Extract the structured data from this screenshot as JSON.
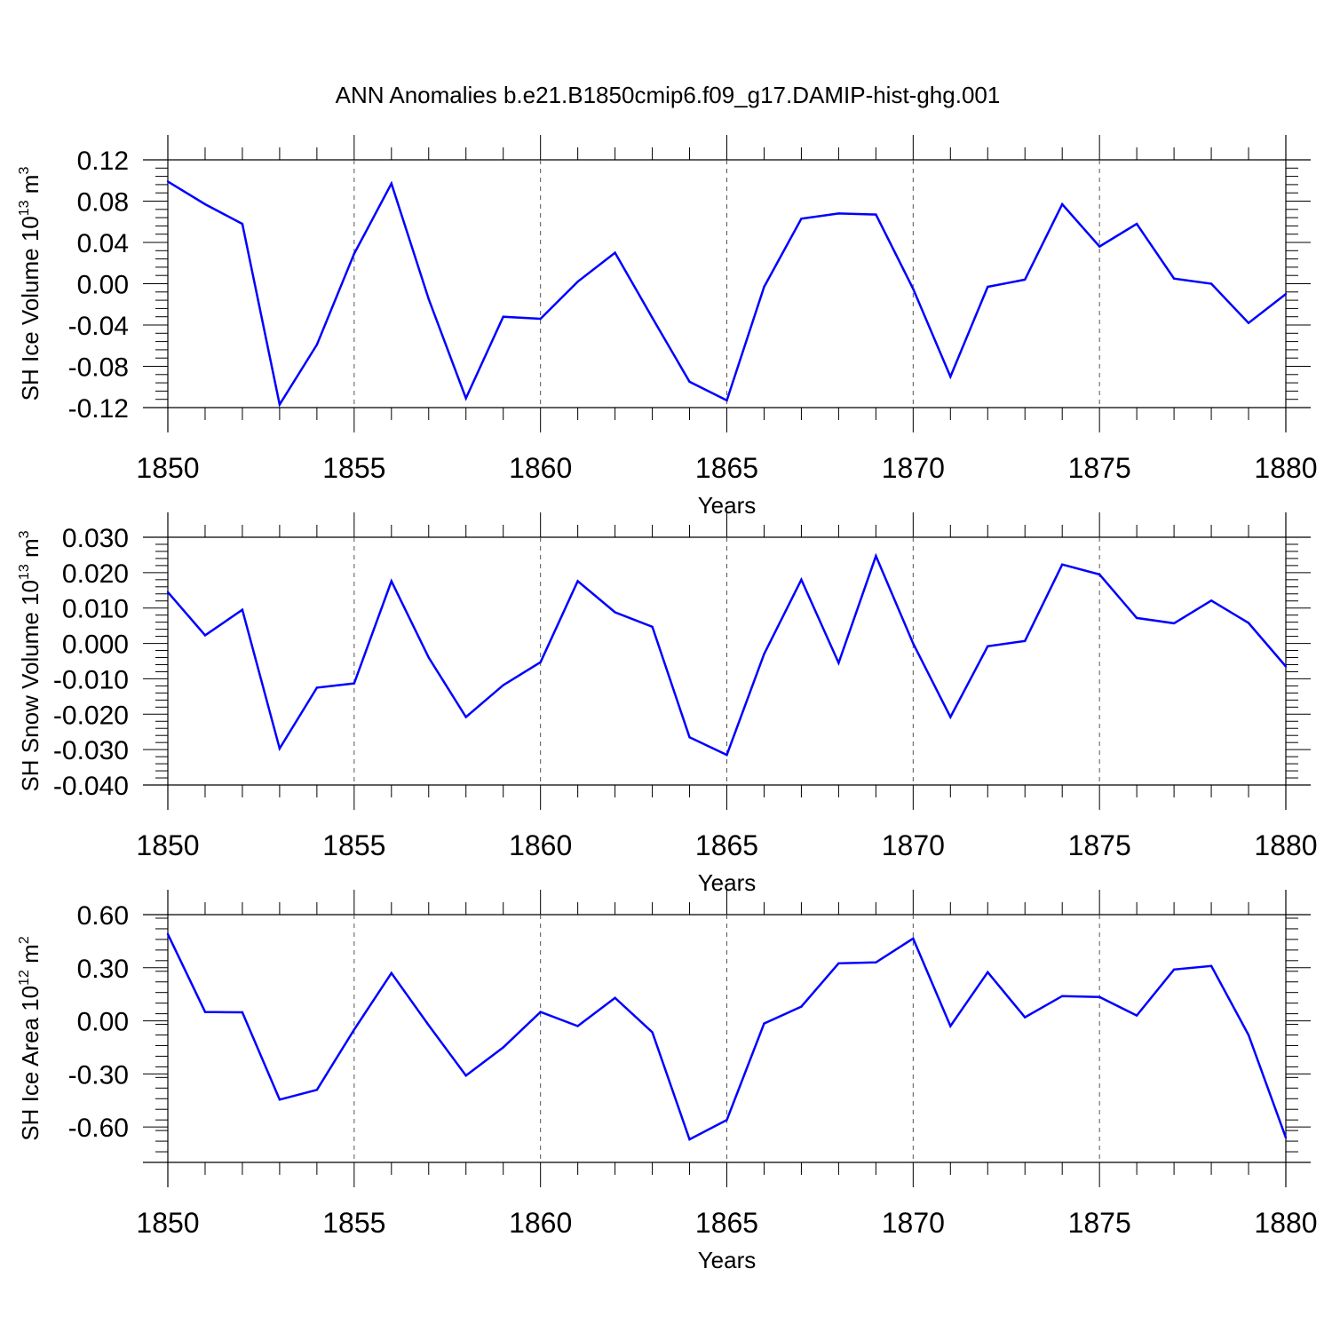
{
  "title": "ANN Anomalies b.e21.B1850cmip6.f09_g17.DAMIP-hist-ghg.001",
  "colors": {
    "series": "#0000ff",
    "frame": "#000000",
    "grid": "#555555"
  },
  "chart_data": [
    {
      "type": "line",
      "ylabel_main": "SH Ice Volume 10",
      "ylabel_exp1": "13",
      "ylabel_mid": " m",
      "ylabel_exp2": "3",
      "xlabel": "Years",
      "xlim": [
        1850,
        1880
      ],
      "ylim": [
        -0.12,
        0.12
      ],
      "x_ticks": [
        1850,
        1855,
        1860,
        1865,
        1870,
        1875,
        1880
      ],
      "x_tick_labels": [
        "1850",
        "1855",
        "1860",
        "1865",
        "1870",
        "1875",
        "1880"
      ],
      "y_ticks": [
        -0.12,
        -0.08,
        -0.04,
        0.0,
        0.04,
        0.08,
        0.12
      ],
      "y_tick_labels": [
        "-0.12",
        "-0.08",
        "-0.04",
        "0.00",
        "0.04",
        "0.08",
        "0.12"
      ],
      "grid": "vertical dashed at major x ticks",
      "x": [
        1850,
        1851,
        1852,
        1853,
        1854,
        1855,
        1856,
        1857,
        1858,
        1859,
        1860,
        1861,
        1862,
        1863,
        1864,
        1865,
        1866,
        1867,
        1868,
        1869,
        1870,
        1871,
        1872,
        1873,
        1874,
        1875,
        1876,
        1877,
        1878,
        1879,
        1880
      ],
      "values": [
        0.099,
        0.077,
        0.058,
        -0.117,
        -0.059,
        0.029,
        0.097,
        -0.015,
        -0.111,
        -0.032,
        -0.034,
        0.002,
        0.03,
        -0.033,
        -0.095,
        -0.113,
        -0.003,
        0.063,
        0.068,
        0.067,
        -0.005,
        -0.09,
        -0.003,
        0.004,
        0.077,
        0.036,
        0.058,
        0.005,
        0.0,
        -0.038,
        -0.01
      ]
    },
    {
      "type": "line",
      "ylabel_main": "SH Snow Volume 10",
      "ylabel_exp1": "13",
      "ylabel_mid": " m",
      "ylabel_exp2": "3",
      "xlabel": "Years",
      "xlim": [
        1850,
        1880
      ],
      "ylim": [
        -0.04,
        0.03
      ],
      "x_ticks": [
        1850,
        1855,
        1860,
        1865,
        1870,
        1875,
        1880
      ],
      "x_tick_labels": [
        "1850",
        "1855",
        "1860",
        "1865",
        "1870",
        "1875",
        "1880"
      ],
      "y_ticks": [
        -0.04,
        -0.03,
        -0.02,
        -0.01,
        0.0,
        0.01,
        0.02,
        0.03
      ],
      "y_tick_labels": [
        "-0.040",
        "-0.030",
        "-0.020",
        "-0.010",
        "0.000",
        "0.010",
        "0.020",
        "0.030"
      ],
      "grid": "vertical dashed at major x ticks",
      "x": [
        1850,
        1851,
        1852,
        1853,
        1854,
        1855,
        1856,
        1857,
        1858,
        1859,
        1860,
        1861,
        1862,
        1863,
        1864,
        1865,
        1866,
        1867,
        1868,
        1869,
        1870,
        1871,
        1872,
        1873,
        1874,
        1875,
        1876,
        1877,
        1878,
        1879,
        1880
      ],
      "values": [
        0.0145,
        0.0023,
        0.0095,
        -0.0297,
        -0.0125,
        -0.0113,
        0.0176,
        -0.004,
        -0.0208,
        -0.0118,
        -0.0053,
        0.0176,
        0.0088,
        0.0047,
        -0.0265,
        -0.0315,
        -0.003,
        0.018,
        -0.0055,
        0.0247,
        0.0,
        -0.0208,
        -0.0008,
        0.0007,
        0.0223,
        0.0195,
        0.0072,
        0.0057,
        0.0121,
        0.0058,
        -0.0065
      ]
    },
    {
      "type": "line",
      "ylabel_main": "SH Ice Area 10",
      "ylabel_exp1": "12",
      "ylabel_mid": " m",
      "ylabel_exp2": "2",
      "xlabel": "Years",
      "xlim": [
        1850,
        1880
      ],
      "ylim": [
        -0.8,
        0.6
      ],
      "x_ticks": [
        1850,
        1855,
        1860,
        1865,
        1870,
        1875,
        1880
      ],
      "x_tick_labels": [
        "1850",
        "1855",
        "1860",
        "1865",
        "1870",
        "1875",
        "1880"
      ],
      "y_ticks": [
        -0.6,
        -0.3,
        0.0,
        0.3,
        0.6
      ],
      "y_tick_labels": [
        "-0.60",
        "-0.30",
        "0.00",
        "0.30",
        "0.60"
      ],
      "grid": "vertical dashed at major x ticks",
      "x": [
        1850,
        1851,
        1852,
        1853,
        1854,
        1855,
        1856,
        1857,
        1858,
        1859,
        1860,
        1861,
        1862,
        1863,
        1864,
        1865,
        1866,
        1867,
        1868,
        1869,
        1870,
        1871,
        1872,
        1873,
        1874,
        1875,
        1876,
        1877,
        1878,
        1879,
        1880
      ],
      "values": [
        0.49,
        0.05,
        0.048,
        -0.445,
        -0.39,
        -0.05,
        0.27,
        -0.025,
        -0.31,
        -0.15,
        0.05,
        -0.03,
        0.13,
        -0.065,
        -0.67,
        -0.56,
        -0.015,
        0.08,
        0.325,
        0.33,
        0.465,
        -0.03,
        0.275,
        0.02,
        0.14,
        0.135,
        0.03,
        0.29,
        0.31,
        -0.08,
        -0.66
      ]
    }
  ]
}
